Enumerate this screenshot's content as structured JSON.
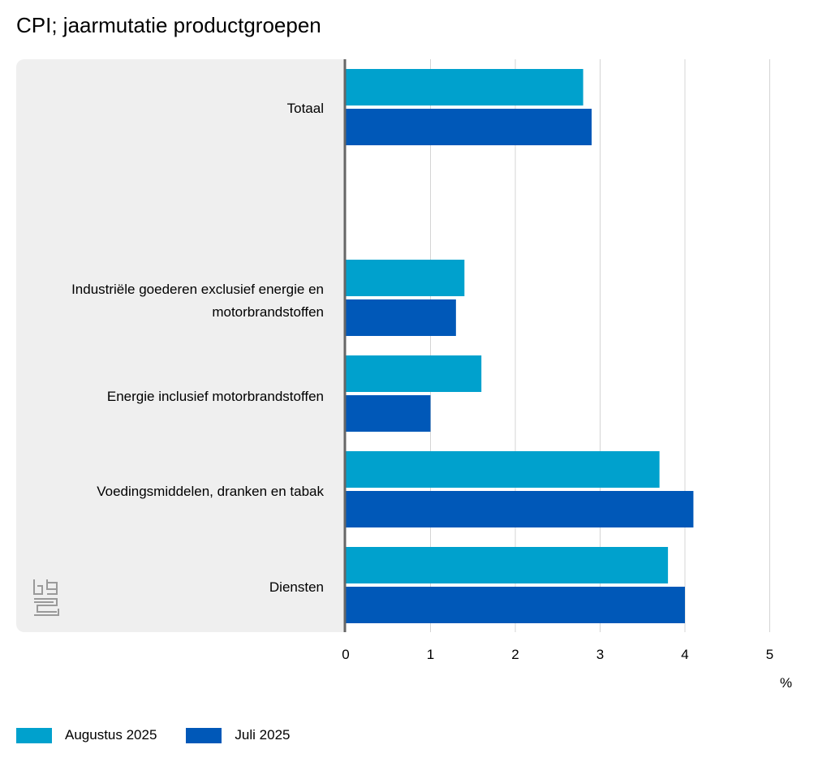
{
  "chart_data": {
    "type": "bar",
    "orientation": "horizontal",
    "title": "CPI; jaarmutatie productgroepen",
    "categories": [
      "Totaal",
      "",
      "Industriële goederen exclusief energie en motorbrandstoffen",
      "Energie inclusief motorbrandstoffen",
      "Voedingsmiddelen, dranken en tabak",
      "Diensten"
    ],
    "series": [
      {
        "name": "Augustus 2025",
        "color": "#00a1cd",
        "values": [
          2.8,
          null,
          1.4,
          1.6,
          3.7,
          3.8
        ]
      },
      {
        "name": "Juli 2025",
        "color": "#0058b8",
        "values": [
          2.9,
          null,
          1.3,
          1.0,
          4.1,
          4.0
        ]
      }
    ],
    "xlim": [
      0,
      5
    ],
    "xticks": [
      "0",
      "1",
      "2",
      "3",
      "4",
      "5"
    ],
    "xlabel": "%",
    "grid": true,
    "legend_position": "bottom-left"
  },
  "logo": {
    "icon": "cbs-logo-icon",
    "color": "#9a9a9a"
  },
  "colors": {
    "panel": "#efefef",
    "gridline": "#d4d4d4",
    "axis": "#666666"
  }
}
